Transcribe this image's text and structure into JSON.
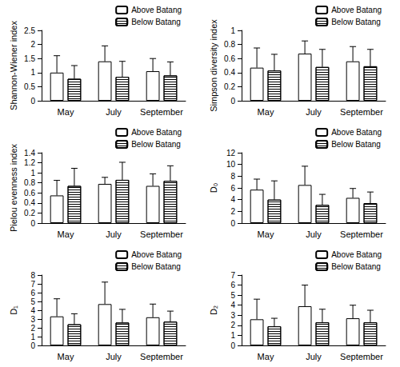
{
  "chart_data": [
    {
      "type": "bar",
      "y_label": "Shannon-Wiener index",
      "categories": [
        "May",
        "July",
        "September"
      ],
      "series": [
        {
          "name": "Above Batang",
          "color": "#ffffff",
          "line_style": "solid",
          "values": [
            1.0,
            1.4,
            1.05
          ],
          "errors": [
            0.6,
            0.55,
            0.45
          ]
        },
        {
          "name": "Below Batang",
          "color": "#ffffff",
          "line_style": "hatched",
          "values": [
            0.78,
            0.85,
            0.9
          ],
          "errors": [
            0.47,
            0.55,
            0.48
          ]
        }
      ],
      "ylim": [
        0,
        2.5
      ],
      "yticks": [
        0,
        0.5,
        1,
        1.5,
        2,
        2.5
      ],
      "grid": false,
      "legend": "upper right"
    },
    {
      "type": "bar",
      "y_label": "Simpson diversity index",
      "categories": [
        "May",
        "July",
        "September"
      ],
      "series": [
        {
          "name": "Above Batang",
          "color": "#ffffff",
          "line_style": "solid",
          "values": [
            0.47,
            0.67,
            0.56
          ],
          "errors": [
            0.28,
            0.18,
            0.21
          ]
        },
        {
          "name": "Below Batang",
          "color": "#ffffff",
          "line_style": "hatched",
          "values": [
            0.43,
            0.48,
            0.49
          ],
          "errors": [
            0.23,
            0.25,
            0.24
          ]
        }
      ],
      "ylim": [
        0,
        1
      ],
      "yticks": [
        0,
        0.2,
        0.4,
        0.6,
        0.8,
        1
      ],
      "grid": false,
      "legend": "upper right"
    },
    {
      "type": "bar",
      "y_label": "Pielou evenness index",
      "categories": [
        "May",
        "July",
        "September"
      ],
      "series": [
        {
          "name": "Above Batang",
          "color": "#ffffff",
          "line_style": "solid",
          "values": [
            0.55,
            0.78,
            0.74
          ],
          "errors": [
            0.3,
            0.13,
            0.24
          ]
        },
        {
          "name": "Below Batang",
          "color": "#ffffff",
          "line_style": "hatched",
          "values": [
            0.74,
            0.86,
            0.84
          ],
          "errors": [
            0.35,
            0.35,
            0.3
          ]
        }
      ],
      "ylim": [
        0,
        1.4
      ],
      "yticks": [
        0,
        0.2,
        0.4,
        0.6,
        0.8,
        1,
        1.2,
        1.4
      ],
      "grid": false,
      "legend": "upper right"
    },
    {
      "type": "bar",
      "y_label": "D₀",
      "categories": [
        "May",
        "July",
        "September"
      ],
      "series": [
        {
          "name": "Above Batang",
          "color": "#ffffff",
          "line_style": "solid",
          "values": [
            5.7,
            6.5,
            4.3
          ],
          "errors": [
            1.8,
            3.2,
            1.6
          ]
        },
        {
          "name": "Below Batang",
          "color": "#ffffff",
          "line_style": "hatched",
          "values": [
            4.0,
            3.1,
            3.4
          ],
          "errors": [
            3.2,
            1.8,
            1.9
          ]
        }
      ],
      "ylim": [
        0,
        12
      ],
      "yticks": [
        0,
        2,
        4,
        6,
        8,
        10,
        12
      ],
      "grid": false,
      "legend": "upper right"
    },
    {
      "type": "bar",
      "y_label": "D₁",
      "categories": [
        "May",
        "July",
        "September"
      ],
      "series": [
        {
          "name": "Above Batang",
          "color": "#ffffff",
          "line_style": "solid",
          "values": [
            3.3,
            4.7,
            3.2
          ],
          "errors": [
            2.0,
            2.5,
            1.5
          ]
        },
        {
          "name": "Below Batang",
          "color": "#ffffff",
          "line_style": "hatched",
          "values": [
            2.4,
            2.6,
            2.7
          ],
          "errors": [
            1.2,
            1.5,
            1.2
          ]
        }
      ],
      "ylim": [
        0,
        8
      ],
      "yticks": [
        0,
        1,
        2,
        3,
        4,
        5,
        6,
        7,
        8
      ],
      "grid": false,
      "legend": "upper right"
    },
    {
      "type": "bar",
      "y_label": "D₂",
      "categories": [
        "May",
        "July",
        "September"
      ],
      "series": [
        {
          "name": "Above Batang",
          "color": "#ffffff",
          "line_style": "solid",
          "values": [
            2.6,
            3.9,
            2.7
          ],
          "errors": [
            2.0,
            2.1,
            1.3
          ]
        },
        {
          "name": "Below Batang",
          "color": "#ffffff",
          "line_style": "hatched",
          "values": [
            1.9,
            2.3,
            2.3
          ],
          "errors": [
            0.8,
            1.3,
            1.2
          ]
        }
      ],
      "ylim": [
        0,
        7
      ],
      "yticks": [
        0,
        1,
        2,
        3,
        4,
        5,
        6,
        7
      ],
      "grid": false,
      "legend": "upper right"
    }
  ]
}
